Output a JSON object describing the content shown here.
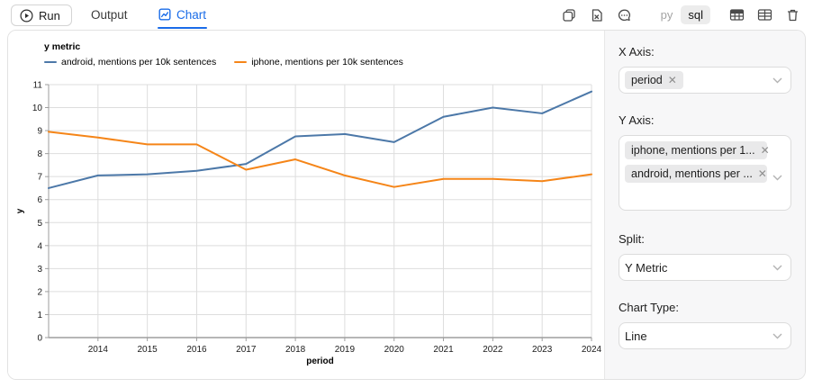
{
  "toolbar": {
    "run_label": "Run",
    "tab_output": "Output",
    "tab_chart": "Chart",
    "lang_py": "py",
    "lang_sql": "sql",
    "accent_color": "#1a6ce8"
  },
  "chart_data": {
    "type": "line",
    "legend_title": "y metric",
    "x": [
      2013,
      2014,
      2015,
      2016,
      2017,
      2018,
      2019,
      2020,
      2021,
      2022,
      2023,
      2024
    ],
    "x_ticks": [
      2014,
      2015,
      2016,
      2017,
      2018,
      2019,
      2020,
      2021,
      2022,
      2023,
      2024
    ],
    "series": [
      {
        "name": "android, mentions per 10k sentences",
        "color": "#4c78a8",
        "values": [
          6.5,
          7.05,
          7.1,
          7.25,
          7.55,
          8.75,
          8.85,
          8.5,
          9.6,
          10.0,
          9.75,
          10.7
        ]
      },
      {
        "name": "iphone, mentions per 10k sentences",
        "color": "#f58518",
        "values": [
          8.95,
          8.7,
          8.4,
          8.4,
          7.3,
          7.75,
          7.05,
          6.55,
          6.9,
          6.9,
          6.8,
          7.1
        ]
      }
    ],
    "xlabel": "period",
    "ylabel": "y",
    "xlim": [
      2013,
      2024
    ],
    "ylim": [
      0,
      11
    ],
    "grid": true,
    "legend_position": "top-left"
  },
  "panel": {
    "x_axis_label": "X Axis:",
    "x_axis_chip": "period",
    "y_axis_label": "Y Axis:",
    "y_axis_chip_1": "iphone, mentions per 1...",
    "y_axis_chip_2": "android, mentions per ...",
    "split_label": "Split:",
    "split_value": "Y Metric",
    "chart_type_label": "Chart Type:",
    "chart_type_value": "Line"
  }
}
